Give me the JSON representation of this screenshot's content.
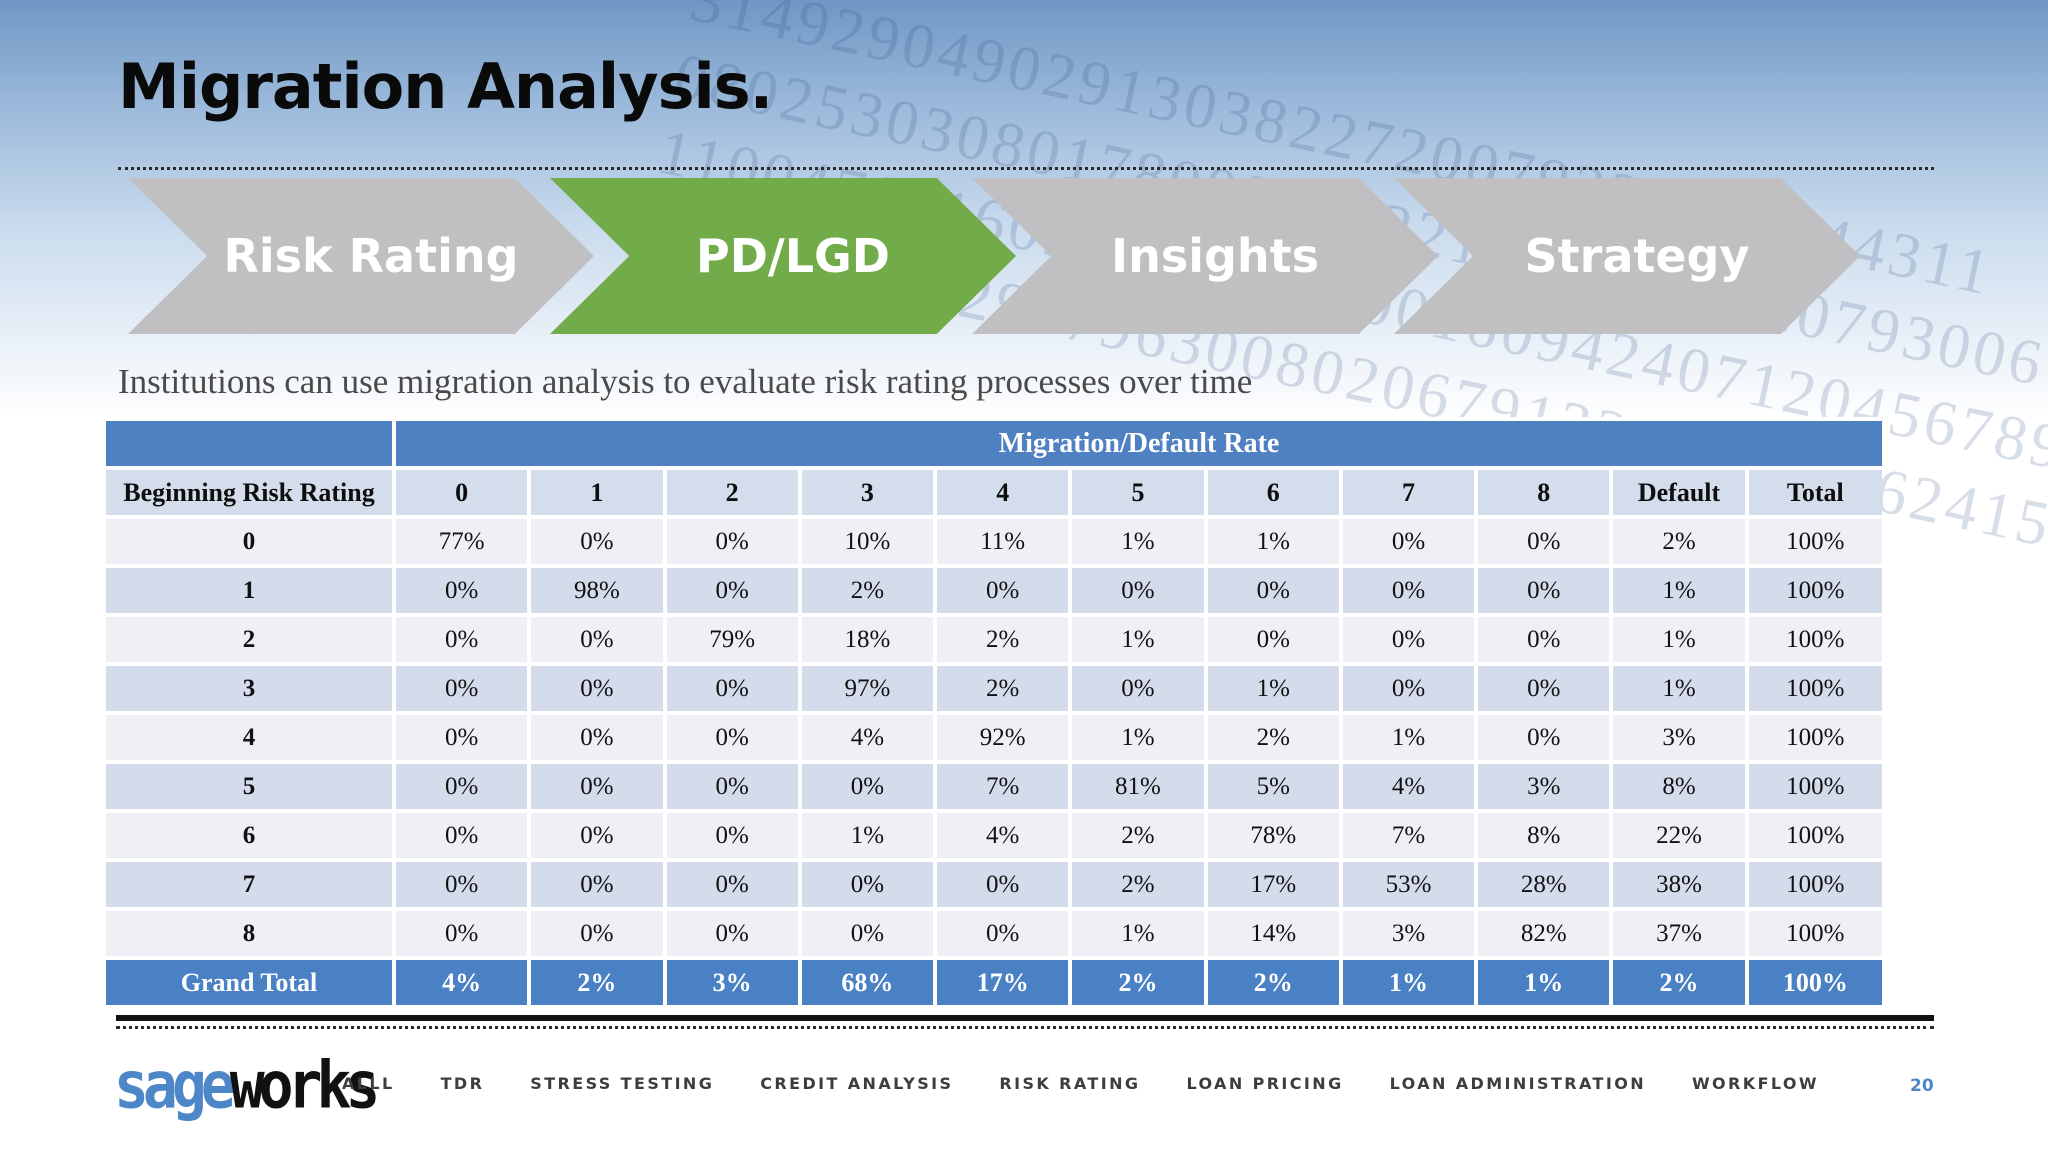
{
  "title": "Migration Analysis.",
  "process_steps": [
    {
      "label": "Risk Rating",
      "active": false
    },
    {
      "label": "PD/LGD",
      "active": true
    },
    {
      "label": "Insights",
      "active": false
    },
    {
      "label": "Strategy",
      "active": false
    }
  ],
  "colors": {
    "step_active": "#72ac4a",
    "step_inactive": "#c0bfc1",
    "table_header": "#4f81c2",
    "brand_blue": "#4e87c8"
  },
  "subtitle": "Institutions can use migration analysis to evaluate risk rating processes over time",
  "table": {
    "group_header": "Migration/Default Rate",
    "row_header_label": "Beginning Risk Rating",
    "columns": [
      "0",
      "1",
      "2",
      "3",
      "4",
      "5",
      "6",
      "7",
      "8",
      "Default",
      "Total"
    ],
    "rows": [
      {
        "label": "0",
        "values": [
          "77%",
          "0%",
          "0%",
          "10%",
          "11%",
          "1%",
          "1%",
          "0%",
          "0%",
          "2%",
          "100%"
        ]
      },
      {
        "label": "1",
        "values": [
          "0%",
          "98%",
          "0%",
          "2%",
          "0%",
          "0%",
          "0%",
          "0%",
          "0%",
          "1%",
          "100%"
        ]
      },
      {
        "label": "2",
        "values": [
          "0%",
          "0%",
          "79%",
          "18%",
          "2%",
          "1%",
          "0%",
          "0%",
          "0%",
          "1%",
          "100%"
        ]
      },
      {
        "label": "3",
        "values": [
          "0%",
          "0%",
          "0%",
          "97%",
          "2%",
          "0%",
          "1%",
          "0%",
          "0%",
          "1%",
          "100%"
        ]
      },
      {
        "label": "4",
        "values": [
          "0%",
          "0%",
          "0%",
          "4%",
          "92%",
          "1%",
          "2%",
          "1%",
          "0%",
          "3%",
          "100%"
        ]
      },
      {
        "label": "5",
        "values": [
          "0%",
          "0%",
          "0%",
          "0%",
          "7%",
          "81%",
          "5%",
          "4%",
          "3%",
          "8%",
          "100%"
        ]
      },
      {
        "label": "6",
        "values": [
          "0%",
          "0%",
          "0%",
          "1%",
          "4%",
          "2%",
          "78%",
          "7%",
          "8%",
          "22%",
          "100%"
        ]
      },
      {
        "label": "7",
        "values": [
          "0%",
          "0%",
          "0%",
          "0%",
          "0%",
          "2%",
          "17%",
          "53%",
          "28%",
          "38%",
          "100%"
        ]
      },
      {
        "label": "8",
        "values": [
          "0%",
          "0%",
          "0%",
          "0%",
          "0%",
          "1%",
          "14%",
          "3%",
          "82%",
          "37%",
          "100%"
        ]
      }
    ],
    "total": {
      "label": "Grand Total",
      "values": [
        "4%",
        "2%",
        "3%",
        "68%",
        "17%",
        "2%",
        "2%",
        "1%",
        "1%",
        "2%",
        "100%"
      ]
    }
  },
  "logo": {
    "part1": "sage",
    "part2": "works"
  },
  "footer_nav": [
    "ALLL",
    "TDR",
    "STRESS TESTING",
    "CREDIT ANALYSIS",
    "RISK RATING",
    "LOAN PRICING",
    "LOAN ADMINISTRATION",
    "WORKFLOW"
  ],
  "page_number": "20"
}
